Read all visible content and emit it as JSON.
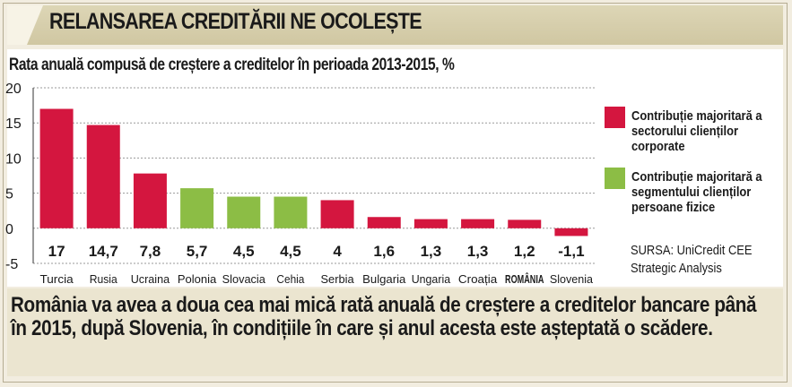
{
  "header": {
    "title": "RELANSAREA CREDITĂRII NE OCOLEȘTE"
  },
  "chart_data": {
    "type": "bar",
    "title": "Rata anuală compusă de creștere a creditelor în perioada 2013-2015, %",
    "categories": [
      "Turcia",
      "Rusia",
      "Ucraina",
      "Polonia",
      "Slovacia",
      "Cehia",
      "Serbia",
      "Bulgaria",
      "Ungaria",
      "Croația",
      "ROMÂNIA",
      "Slovenia"
    ],
    "values": [
      17,
      14.7,
      7.8,
      5.7,
      4.5,
      4.5,
      4,
      1.6,
      1.3,
      1.3,
      1.2,
      -1.1
    ],
    "value_labels": [
      "17",
      "14,7",
      "7,8",
      "5,7",
      "4,5",
      "4,5",
      "4",
      "1,6",
      "1,3",
      "1,3",
      "1,2",
      "-1,1"
    ],
    "groups": [
      "corporate",
      "corporate",
      "corporate",
      "retail",
      "retail",
      "retail",
      "corporate",
      "corporate",
      "corporate",
      "corporate",
      "corporate",
      "corporate"
    ],
    "highlight_category": "ROMÂNIA",
    "ylim": [
      -5,
      20
    ],
    "yticks": [
      -5,
      0,
      5,
      10,
      15,
      20
    ],
    "grid": true,
    "legend_position": "right",
    "colors": {
      "corporate": "#d4163f",
      "retail": "#8cbd45"
    }
  },
  "legend": [
    {
      "label": "Contribuție majoritară a sectorului clienților corporate",
      "color": "#d4163f"
    },
    {
      "label": "Contribuție majoritară a segmentului clienților persoane fizice",
      "color": "#8cbd45"
    }
  ],
  "source": {
    "line1": "SURSA: UniCredit CEE",
    "line2": "Strategic Analysis"
  },
  "caption": {
    "text": "România va avea a doua cea mai mică rată anuală de creștere a creditelor bancare până în 2015, după Slovenia, în condițiile în care și anul acesta este așteptată o scădere."
  }
}
